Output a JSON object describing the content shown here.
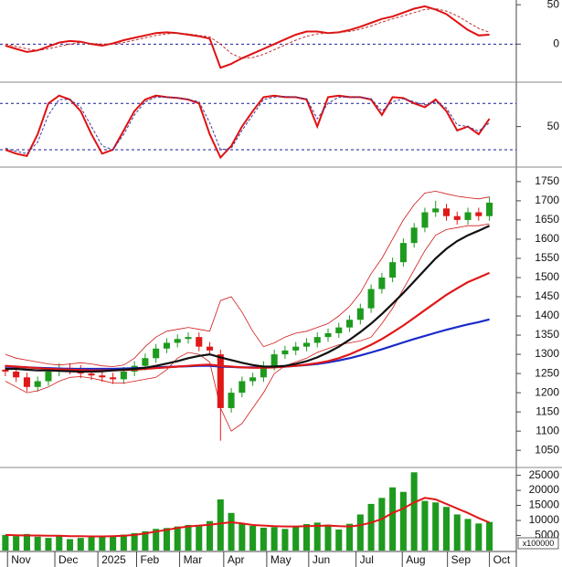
{
  "chart_data": [
    {
      "type": "line",
      "xlim": [
        -0.5,
        47.5
      ],
      "ylim": [
        -46,
        56
      ],
      "yticks": [
        0,
        50
      ],
      "levels": [
        0
      ],
      "level_color": "#1a1a9c",
      "series": [
        {
          "color": "#e01010",
          "style": "solid",
          "values": [
            -2,
            -6,
            -10,
            -8,
            -3,
            2,
            4,
            3,
            0,
            -2,
            1,
            5,
            8,
            11,
            14,
            15,
            14,
            12,
            10,
            7,
            -30,
            -25,
            -18,
            -12,
            -6,
            0,
            6,
            12,
            16,
            16,
            14,
            15,
            18,
            22,
            27,
            32,
            35,
            40,
            45,
            48,
            44,
            38,
            28,
            18,
            11,
            12
          ]
        },
        {
          "color": "#c03030",
          "style": "dashed",
          "values": [
            0,
            -3,
            -6,
            -8,
            -6,
            -3,
            0,
            2,
            1,
            0,
            0,
            2,
            5,
            8,
            11,
            13,
            14,
            13,
            11,
            9,
            0,
            -12,
            -18,
            -17,
            -13,
            -7,
            -1,
            5,
            10,
            13,
            14,
            15,
            16,
            19,
            23,
            28,
            32,
            36,
            40,
            44,
            45,
            42,
            36,
            28,
            20,
            15
          ]
        }
      ]
    },
    {
      "type": "line",
      "xlim": [
        -0.5,
        47.5
      ],
      "ylim": [
        0,
        105
      ],
      "yticks": [
        50
      ],
      "levels": [
        20,
        80
      ],
      "level_color": "#1a1a9c",
      "series": [
        {
          "color": "#e01010",
          "style": "solid",
          "values": [
            20,
            15,
            12,
            40,
            80,
            90,
            85,
            70,
            40,
            15,
            20,
            45,
            70,
            85,
            90,
            88,
            87,
            85,
            80,
            40,
            10,
            25,
            50,
            70,
            88,
            90,
            88,
            88,
            85,
            50,
            88,
            90,
            88,
            88,
            85,
            65,
            88,
            87,
            80,
            75,
            85,
            70,
            45,
            50,
            40,
            60
          ]
        },
        {
          "color": "#3a3a9c",
          "style": "dashed",
          "values": [
            22,
            18,
            15,
            30,
            65,
            85,
            85,
            75,
            50,
            25,
            20,
            40,
            65,
            82,
            88,
            88,
            87,
            85,
            82,
            55,
            20,
            22,
            45,
            65,
            85,
            88,
            89,
            88,
            86,
            60,
            80,
            88,
            88,
            88,
            86,
            70,
            82,
            86,
            82,
            78,
            82,
            74,
            52,
            50,
            44,
            55
          ]
        }
      ]
    },
    {
      "type": "candlestick",
      "xlim": [
        -0.5,
        47.5
      ],
      "ylim": [
        1010,
        1783
      ],
      "yticks": [
        1050,
        1100,
        1150,
        1200,
        1250,
        1300,
        1350,
        1400,
        1450,
        1500,
        1550,
        1600,
        1650,
        1700,
        1750
      ],
      "up_color": "#1e9a1e",
      "down_color": "#e01818",
      "open": [
        1260,
        1255,
        1240,
        1215,
        1230,
        1255,
        1265,
        1260,
        1250,
        1245,
        1240,
        1235,
        1255,
        1270,
        1290,
        1315,
        1330,
        1340,
        1345,
        1320,
        1300,
        1160,
        1200,
        1230,
        1240,
        1270,
        1300,
        1310,
        1320,
        1330,
        1345,
        1355,
        1370,
        1390,
        1420,
        1470,
        1500,
        1540,
        1590,
        1630,
        1670,
        1680,
        1660,
        1650,
        1670,
        1660
      ],
      "high": [
        1272,
        1267,
        1252,
        1242,
        1267,
        1277,
        1277,
        1272,
        1262,
        1257,
        1252,
        1267,
        1282,
        1302,
        1327,
        1342,
        1352,
        1357,
        1357,
        1332,
        1312,
        1212,
        1242,
        1252,
        1282,
        1312,
        1322,
        1332,
        1342,
        1357,
        1367,
        1382,
        1402,
        1432,
        1482,
        1512,
        1552,
        1602,
        1642,
        1682,
        1700,
        1692,
        1672,
        1682,
        1682,
        1710
      ],
      "low": [
        1243,
        1228,
        1203,
        1203,
        1218,
        1243,
        1248,
        1238,
        1233,
        1228,
        1223,
        1223,
        1243,
        1258,
        1278,
        1303,
        1318,
        1328,
        1308,
        1298,
        1075,
        1148,
        1188,
        1218,
        1228,
        1258,
        1288,
        1298,
        1308,
        1318,
        1333,
        1343,
        1358,
        1378,
        1408,
        1458,
        1488,
        1528,
        1578,
        1618,
        1658,
        1648,
        1638,
        1638,
        1648,
        1648
      ],
      "close": [
        1255,
        1240,
        1215,
        1230,
        1255,
        1265,
        1260,
        1250,
        1245,
        1240,
        1235,
        1255,
        1270,
        1290,
        1315,
        1330,
        1340,
        1345,
        1320,
        1310,
        1160,
        1200,
        1230,
        1240,
        1270,
        1300,
        1310,
        1320,
        1330,
        1345,
        1355,
        1370,
        1390,
        1420,
        1470,
        1500,
        1540,
        1590,
        1630,
        1670,
        1680,
        1660,
        1650,
        1670,
        1660,
        1695
      ],
      "series": [
        {
          "color": "#d01818",
          "width": 0.8,
          "values": [
            1300,
            1290,
            1285,
            1280,
            1275,
            1272,
            1275,
            1278,
            1275,
            1270,
            1268,
            1272,
            1290,
            1320,
            1345,
            1360,
            1365,
            1370,
            1365,
            1360,
            1440,
            1450,
            1410,
            1360,
            1320,
            1330,
            1345,
            1355,
            1360,
            1370,
            1380,
            1400,
            1425,
            1460,
            1510,
            1550,
            1600,
            1650,
            1690,
            1720,
            1725,
            1718,
            1712,
            1708,
            1705,
            1710
          ]
        },
        {
          "color": "#d01818",
          "width": 0.8,
          "values": [
            1230,
            1215,
            1200,
            1205,
            1215,
            1230,
            1240,
            1242,
            1238,
            1232,
            1225,
            1225,
            1230,
            1235,
            1240,
            1260,
            1290,
            1305,
            1300,
            1280,
            1160,
            1100,
            1120,
            1160,
            1200,
            1250,
            1270,
            1280,
            1290,
            1305,
            1315,
            1325,
            1330,
            1335,
            1345,
            1380,
            1420,
            1470,
            1520,
            1570,
            1610,
            1625,
            1630,
            1635,
            1635,
            1640
          ]
        },
        {
          "color": "#1a2bc8",
          "width": 2.2,
          "values": [
            1268,
            1267,
            1266,
            1265,
            1264,
            1263,
            1262,
            1262,
            1262,
            1262,
            1262,
            1263,
            1264,
            1265,
            1266,
            1267,
            1268,
            1269,
            1270,
            1270,
            1268,
            1267,
            1266,
            1266,
            1266,
            1267,
            1268,
            1270,
            1272,
            1275,
            1279,
            1284,
            1290,
            1297,
            1305,
            1313,
            1322,
            1331,
            1340,
            1348,
            1356,
            1364,
            1371,
            1378,
            1384,
            1391
          ]
        },
        {
          "color": "#e01818",
          "width": 2.2,
          "values": [
            1270,
            1268,
            1266,
            1264,
            1262,
            1261,
            1260,
            1259,
            1258,
            1258,
            1258,
            1259,
            1260,
            1262,
            1264,
            1266,
            1268,
            1270,
            1272,
            1273,
            1270,
            1268,
            1266,
            1265,
            1265,
            1266,
            1268,
            1270,
            1273,
            1277,
            1282,
            1290,
            1300,
            1312,
            1325,
            1340,
            1357,
            1375,
            1395,
            1415,
            1435,
            1455,
            1472,
            1488,
            1500,
            1512
          ]
        },
        {
          "color": "#111111",
          "width": 2.2,
          "values": [
            1262,
            1262,
            1260,
            1258,
            1258,
            1257,
            1256,
            1255,
            1255,
            1256,
            1258,
            1260,
            1262,
            1265,
            1270,
            1276,
            1282,
            1290,
            1296,
            1300,
            1292,
            1285,
            1278,
            1272,
            1268,
            1268,
            1270,
            1275,
            1282,
            1292,
            1305,
            1320,
            1338,
            1358,
            1380,
            1405,
            1432,
            1460,
            1490,
            1520,
            1550,
            1575,
            1595,
            1610,
            1622,
            1635
          ]
        }
      ]
    },
    {
      "type": "bar",
      "xlim": [
        -0.5,
        47.5
      ],
      "ylim": [
        0,
        27000
      ],
      "yticks": [
        5000,
        10000,
        15000,
        20000,
        25000
      ],
      "unit": "x100000",
      "color": "#1e9a1e",
      "values": [
        5200,
        4800,
        5500,
        4600,
        4200,
        4900,
        3800,
        4200,
        4400,
        5000,
        4600,
        5300,
        5800,
        6400,
        7200,
        7500,
        8000,
        8500,
        8200,
        9800,
        17000,
        12500,
        9000,
        8200,
        7600,
        7800,
        7200,
        8000,
        8800,
        9300,
        8600,
        7000,
        8900,
        12000,
        15500,
        17500,
        21000,
        19500,
        26000,
        16500,
        16000,
        14500,
        12000,
        10500,
        9000,
        9500
      ],
      "series": [
        {
          "color": "#e01818",
          "width": 2,
          "values": [
            5200,
            5100,
            5000,
            5000,
            4900,
            4900,
            4800,
            4800,
            4700,
            4700,
            4800,
            4900,
            5200,
            5700,
            6300,
            6900,
            7500,
            8000,
            8300,
            8600,
            9000,
            9400,
            9000,
            8500,
            8300,
            8100,
            8000,
            8000,
            8100,
            8200,
            8300,
            8100,
            8000,
            8400,
            9300,
            10500,
            12500,
            14000,
            16000,
            17500,
            17000,
            15500,
            14000,
            12500,
            10800,
            9300
          ]
        }
      ],
      "xticks": [
        {
          "value": 0.2,
          "label": "Nov"
        },
        {
          "value": 4.6,
          "label": "Dec"
        },
        {
          "value": 8.6,
          "label": "2025"
        },
        {
          "value": 12.2,
          "label": "Feb"
        },
        {
          "value": 16.2,
          "label": "Mar"
        },
        {
          "value": 20.3,
          "label": "Apr"
        },
        {
          "value": 24.3,
          "label": "May"
        },
        {
          "value": 28.2,
          "label": "Jun"
        },
        {
          "value": 32.6,
          "label": "Jul"
        },
        {
          "value": 36.9,
          "label": "Aug"
        },
        {
          "value": 41.1,
          "label": "Sep"
        },
        {
          "value": 45,
          "label": "Oct"
        }
      ]
    }
  ]
}
